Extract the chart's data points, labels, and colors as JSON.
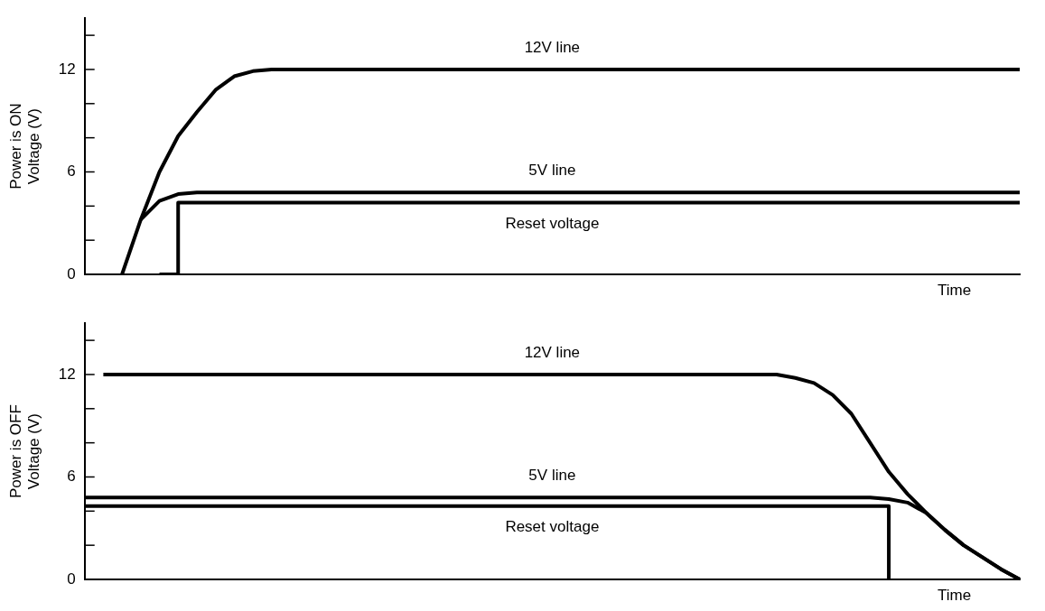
{
  "chart_data": [
    {
      "type": "line",
      "ylabel": "Power is ON\nVoltage (V)",
      "xlabel": "Time",
      "ylim": [
        0,
        15
      ],
      "categories": [
        null,
        null,
        null,
        null,
        null,
        null,
        null,
        null,
        null,
        null,
        null,
        null,
        null,
        null,
        null,
        null,
        null,
        null,
        null,
        null,
        null,
        null,
        null,
        null,
        null,
        null,
        null,
        null,
        null,
        null,
        null,
        null,
        null,
        null,
        null,
        null,
        null,
        null,
        null,
        null,
        null,
        null,
        null,
        null,
        null,
        null,
        null,
        null,
        null,
        null,
        null
      ],
      "yticks": [
        0,
        {
          "value": 2,
          "label": null
        },
        {
          "value": 4,
          "label": null
        },
        6,
        {
          "value": 8,
          "label": null
        },
        {
          "value": 10,
          "label": null
        },
        12,
        {
          "value": 14,
          "label": null
        }
      ],
      "tick_labels": "y",
      "grid": false,
      "legend": false,
      "marker": "none",
      "line_style": "solid",
      "series": [
        {
          "color": "#000000",
          "values": [
            null,
            null,
            0,
            3.2,
            6.0,
            8.1,
            9.5,
            10.8,
            11.6,
            11.9,
            12,
            12,
            12,
            12,
            12,
            12,
            12,
            12,
            12,
            12,
            12,
            12,
            12,
            12,
            12,
            12,
            12,
            12,
            12,
            12,
            12,
            12,
            12,
            12,
            12,
            12,
            12,
            12,
            12,
            12,
            12,
            12,
            12,
            12,
            12,
            12,
            12,
            12,
            12,
            12,
            12
          ]
        },
        {
          "color": "#000000",
          "values": [
            null,
            null,
            null,
            3.2,
            4.3,
            4.7,
            4.8,
            4.8,
            4.8,
            4.8,
            4.8,
            4.8,
            4.8,
            4.8,
            4.8,
            4.8,
            4.8,
            4.8,
            4.8,
            4.8,
            4.8,
            4.8,
            4.8,
            4.8,
            4.8,
            4.8,
            4.8,
            4.8,
            4.8,
            4.8,
            4.8,
            4.8,
            4.8,
            4.8,
            4.8,
            4.8,
            4.8,
            4.8,
            4.8,
            4.8,
            4.8,
            4.8,
            4.8,
            4.8,
            4.8,
            4.8,
            4.8,
            4.8,
            4.8,
            4.8,
            4.8
          ]
        },
        {
          "type": "step",
          "color": "#000000",
          "values": [
            null,
            null,
            null,
            null,
            0,
            4.2,
            4.2,
            4.2,
            4.2,
            4.2,
            4.2,
            4.2,
            4.2,
            4.2,
            4.2,
            4.2,
            4.2,
            4.2,
            4.2,
            4.2,
            4.2,
            4.2,
            4.2,
            4.2,
            4.2,
            4.2,
            4.2,
            4.2,
            4.2,
            4.2,
            4.2,
            4.2,
            4.2,
            4.2,
            4.2,
            4.2,
            4.2,
            4.2,
            4.2,
            4.2,
            4.2,
            4.2,
            4.2,
            4.2,
            4.2,
            4.2,
            4.2,
            4.2,
            4.2,
            4.2,
            4.2
          ]
        }
      ],
      "annotations": [
        "12V line",
        "5V line",
        "Reset voltage"
      ]
    },
    {
      "type": "line",
      "ylabel": "Power is OFF\nVoltage (V)",
      "xlabel": "Time",
      "ylim": [
        0,
        15
      ],
      "categories": [
        null,
        null,
        null,
        null,
        null,
        null,
        null,
        null,
        null,
        null,
        null,
        null,
        null,
        null,
        null,
        null,
        null,
        null,
        null,
        null,
        null,
        null,
        null,
        null,
        null,
        null,
        null,
        null,
        null,
        null,
        null,
        null,
        null,
        null,
        null,
        null,
        null,
        null,
        null,
        null,
        null,
        null,
        null,
        null,
        null,
        null,
        null,
        null,
        null,
        null,
        null
      ],
      "yticks": [
        0,
        {
          "value": 2,
          "label": null
        },
        {
          "value": 4,
          "label": null
        },
        6,
        {
          "value": 8,
          "label": null
        },
        {
          "value": 10,
          "label": null
        },
        12,
        {
          "value": 14,
          "label": null
        }
      ],
      "tick_labels": "y",
      "grid": false,
      "legend": false,
      "marker": "none",
      "line_style": "solid",
      "series": [
        {
          "color": "#000000",
          "values": [
            null,
            12,
            12,
            12,
            12,
            12,
            12,
            12,
            12,
            12,
            12,
            12,
            12,
            12,
            12,
            12,
            12,
            12,
            12,
            12,
            12,
            12,
            12,
            12,
            12,
            12,
            12,
            12,
            12,
            12,
            12,
            12,
            12,
            12,
            12,
            12,
            12,
            12,
            11.8,
            11.5,
            10.8,
            9.7,
            8.0,
            6.3,
            5.0,
            3.9,
            2.9,
            2.0,
            1.3,
            0.6,
            0
          ]
        },
        {
          "color": "#000000",
          "values": [
            4.8,
            4.8,
            4.8,
            4.8,
            4.8,
            4.8,
            4.8,
            4.8,
            4.8,
            4.8,
            4.8,
            4.8,
            4.8,
            4.8,
            4.8,
            4.8,
            4.8,
            4.8,
            4.8,
            4.8,
            4.8,
            4.8,
            4.8,
            4.8,
            4.8,
            4.8,
            4.8,
            4.8,
            4.8,
            4.8,
            4.8,
            4.8,
            4.8,
            4.8,
            4.8,
            4.8,
            4.8,
            4.8,
            4.8,
            4.8,
            4.8,
            4.8,
            4.8,
            4.7,
            4.5,
            3.9,
            2.9,
            2.0,
            1.3,
            0.6,
            0
          ]
        },
        {
          "type": "step",
          "color": "#000000",
          "values": [
            4.3,
            4.3,
            4.3,
            4.3,
            4.3,
            4.3,
            4.3,
            4.3,
            4.3,
            4.3,
            4.3,
            4.3,
            4.3,
            4.3,
            4.3,
            4.3,
            4.3,
            4.3,
            4.3,
            4.3,
            4.3,
            4.3,
            4.3,
            4.3,
            4.3,
            4.3,
            4.3,
            4.3,
            4.3,
            4.3,
            4.3,
            4.3,
            4.3,
            4.3,
            4.3,
            4.3,
            4.3,
            4.3,
            4.3,
            4.3,
            4.3,
            4.3,
            4.3,
            0,
            null,
            null,
            null,
            null,
            null,
            null,
            null
          ]
        }
      ],
      "annotations": [
        "12V line",
        "5V line",
        "Reset voltage"
      ]
    }
  ]
}
